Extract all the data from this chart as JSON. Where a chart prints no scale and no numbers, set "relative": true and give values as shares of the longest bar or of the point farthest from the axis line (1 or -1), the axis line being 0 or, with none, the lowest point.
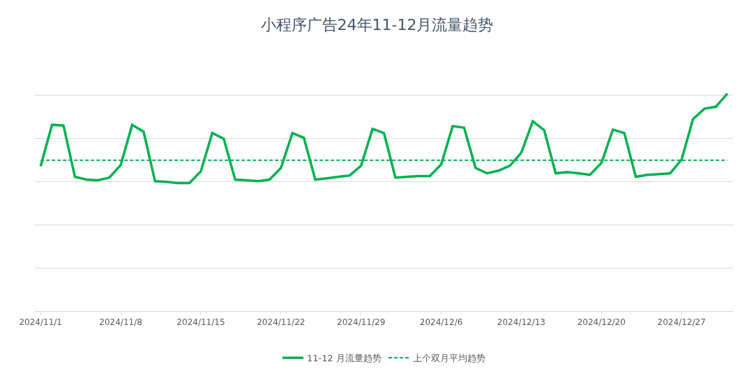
{
  "chart_data": {
    "type": "line",
    "title": "小程序广告24年11-12月流量趋势",
    "relative": true,
    "grid": "y",
    "legend": "bottom",
    "marker": "none",
    "categories": [
      "2024/11/1",
      null,
      null,
      null,
      null,
      null,
      null,
      "2024/11/8",
      null,
      null,
      null,
      null,
      null,
      null,
      "2024/11/15",
      null,
      null,
      null,
      null,
      null,
      null,
      "2024/11/22",
      null,
      null,
      null,
      null,
      null,
      null,
      "2024/11/29",
      null,
      null,
      null,
      null,
      null,
      null,
      "2024/12/6",
      null,
      null,
      null,
      null,
      null,
      null,
      "2024/12/13",
      null,
      null,
      null,
      null,
      null,
      null,
      "2024/12/20",
      null,
      null,
      null,
      null,
      null,
      null,
      "2024/12/27",
      null,
      null,
      null,
      null
    ],
    "series": [
      {
        "name": "11-12 月流量趋势",
        "color": "#00b050",
        "line_style": "solid",
        "values": [
          0.665,
          0.856,
          0.853,
          0.617,
          0.604,
          0.601,
          0.613,
          0.671,
          0.856,
          0.824,
          0.597,
          0.594,
          0.588,
          0.588,
          0.642,
          0.818,
          0.792,
          0.604,
          0.601,
          0.597,
          0.604,
          0.658,
          0.818,
          0.796,
          0.604,
          0.61,
          0.617,
          0.623,
          0.668,
          0.837,
          0.818,
          0.613,
          0.617,
          0.62,
          0.62,
          0.674,
          0.85,
          0.843,
          0.658,
          0.633,
          0.645,
          0.668,
          0.728,
          0.872,
          0.831,
          0.633,
          0.639,
          0.633,
          0.626,
          0.681,
          0.834,
          0.818,
          0.617,
          0.626,
          0.629,
          0.633,
          0.696,
          0.882,
          0.93,
          0.939,
          1.0
        ]
      },
      {
        "name": "上个双月平均趋势",
        "color": "#00b050",
        "line_style": "dashed",
        "values": [
          0.693,
          0.693,
          0.693,
          0.693,
          0.693,
          0.693,
          0.693,
          0.693,
          0.693,
          0.693,
          0.693,
          0.693,
          0.693,
          0.693,
          0.693,
          0.693,
          0.693,
          0.693,
          0.693,
          0.693,
          0.693,
          0.693,
          0.693,
          0.693,
          0.693,
          0.693,
          0.693,
          0.693,
          0.693,
          0.693,
          0.693,
          0.693,
          0.693,
          0.693,
          0.693,
          0.693,
          0.693,
          0.693,
          0.693,
          0.693,
          0.693,
          0.693,
          0.693,
          0.693,
          0.693,
          0.693,
          0.693,
          0.693,
          0.693,
          0.693,
          0.693,
          0.693,
          0.693,
          0.693,
          0.693,
          0.693,
          0.693,
          0.693,
          0.693,
          0.693,
          0.693
        ]
      }
    ]
  }
}
